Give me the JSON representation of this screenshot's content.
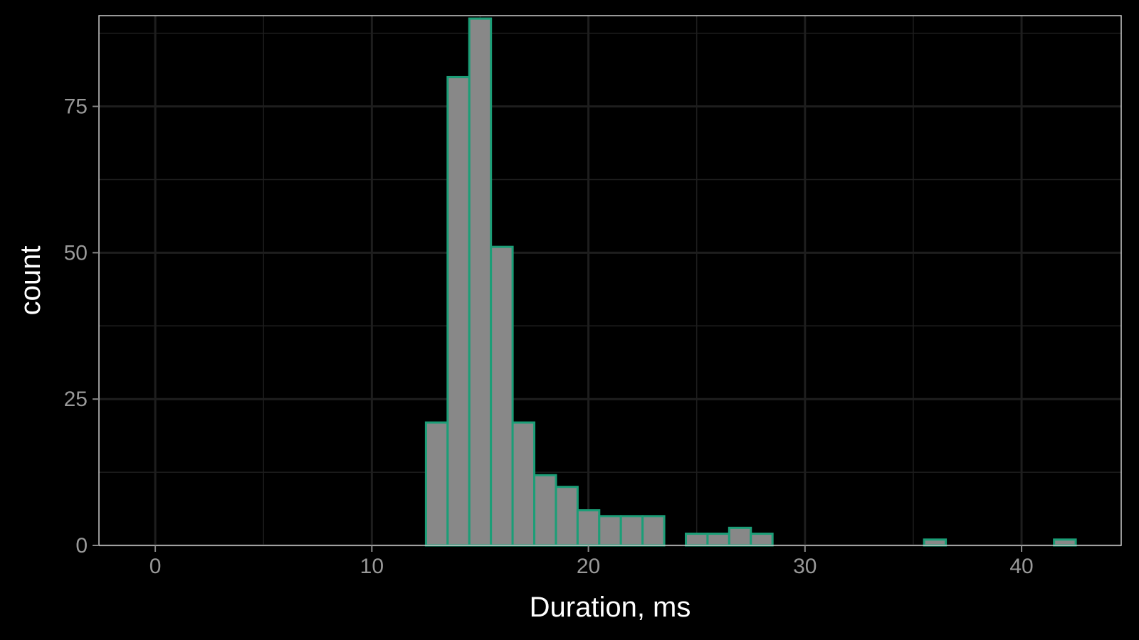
{
  "chart_data": {
    "type": "bar",
    "xlabel": "Duration, ms",
    "ylabel": "count",
    "xlim": [
      -2.6,
      44.6
    ],
    "ylim": [
      0,
      90.5
    ],
    "x_ticks": [
      0,
      10,
      20,
      30,
      40
    ],
    "y_ticks": [
      0,
      25,
      50,
      75
    ],
    "grid": true,
    "bin_width": 1,
    "bins": [
      {
        "x": 13,
        "count": 21
      },
      {
        "x": 14,
        "count": 80
      },
      {
        "x": 15,
        "count": 90
      },
      {
        "x": 16,
        "count": 51
      },
      {
        "x": 17,
        "count": 21
      },
      {
        "x": 18,
        "count": 12
      },
      {
        "x": 19,
        "count": 10
      },
      {
        "x": 20,
        "count": 6
      },
      {
        "x": 21,
        "count": 5
      },
      {
        "x": 22,
        "count": 5
      },
      {
        "x": 23,
        "count": 5
      },
      {
        "x": 25,
        "count": 2
      },
      {
        "x": 26,
        "count": 2
      },
      {
        "x": 27,
        "count": 3
      },
      {
        "x": 28,
        "count": 2
      },
      {
        "x": 36,
        "count": 1
      },
      {
        "x": 42,
        "count": 1
      }
    ],
    "colors": {
      "background": "#000000",
      "bar_fill": "#888888",
      "bar_outline": "#1b9e77",
      "grid": "#1e1e1e",
      "panel_border": "#cccccc"
    }
  }
}
